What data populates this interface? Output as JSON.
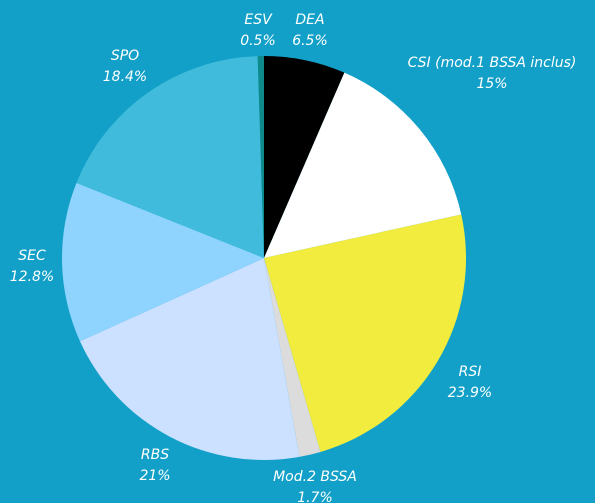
{
  "chart_data": {
    "type": "pie",
    "categories": [
      "DEA",
      "CSI (mod.1 BSSA inclus)",
      "RSI",
      "Mod.2 BSSA",
      "RBS",
      "SEC",
      "SPO",
      "ESV"
    ],
    "values": [
      6.5,
      15,
      23.9,
      1.7,
      21,
      12.8,
      18.4,
      0.5
    ],
    "value_labels": [
      "6.5%",
      "15%",
      "23.9%",
      "1.7%",
      "21%",
      "12.8%",
      "18.4%",
      "0.5%"
    ],
    "colors": [
      "#000000",
      "#ffffff",
      "#f2ec3e",
      "#dcdcdc",
      "#cce0ff",
      "#8fd3ff",
      "#40bbdc",
      "#0e8a8a"
    ]
  }
}
